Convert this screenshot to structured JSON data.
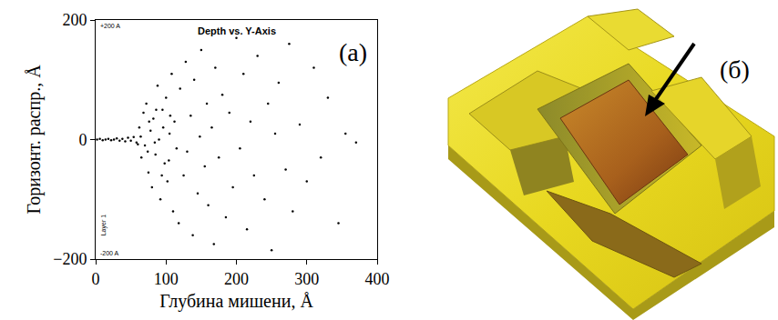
{
  "chart_data": {
    "type": "scatter",
    "title": "Depth vs. Y-Axis",
    "x_label": "Глубина мишени, Å",
    "y_label": "Горизонт. распр., Å",
    "annotations": {
      "panel": "(a)",
      "top": "+200 A",
      "bottom": "-200 A",
      "layer": "Layer 1"
    },
    "x": [
      2,
      6,
      10,
      14,
      18,
      22,
      26,
      30,
      34,
      38,
      42,
      46,
      50,
      54,
      58,
      62,
      65,
      68,
      70,
      72,
      75,
      78,
      80,
      82,
      85,
      88,
      90,
      92,
      95,
      98,
      100,
      102,
      105,
      108,
      110,
      112,
      115,
      118,
      120,
      125,
      128,
      130,
      135,
      138,
      140,
      145,
      148,
      150,
      155,
      158,
      160,
      165,
      168,
      170,
      175,
      180,
      185,
      190,
      195,
      200,
      205,
      210,
      215,
      220,
      225,
      230,
      240,
      245,
      250,
      255,
      260,
      270,
      275,
      280,
      290,
      300,
      310,
      320,
      330,
      345,
      355,
      370,
      60,
      64,
      74,
      76,
      84,
      86,
      94,
      96,
      104,
      106
    ],
    "values": [
      0,
      1,
      -1,
      0,
      1,
      -1,
      0,
      2,
      -2,
      1,
      -3,
      3,
      -2,
      4,
      -5,
      20,
      -30,
      45,
      -10,
      60,
      -55,
      15,
      -80,
      35,
      -25,
      90,
      0,
      -100,
      50,
      -40,
      70,
      -70,
      10,
      110,
      -120,
      30,
      -15,
      -140,
      85,
      -60,
      130,
      -20,
      40,
      -160,
      100,
      -90,
      5,
      150,
      -45,
      60,
      -110,
      20,
      -175,
      120,
      -30,
      75,
      -130,
      45,
      -80,
      170,
      -15,
      110,
      -150,
      30,
      -60,
      140,
      -100,
      60,
      -185,
      10,
      95,
      -50,
      160,
      -120,
      25,
      -70,
      120,
      -30,
      70,
      -140,
      10,
      -5,
      -8,
      5,
      -20,
      30,
      -5,
      50,
      -60,
      20,
      -35,
      40
    ],
    "color": "#000000",
    "marker": "dot",
    "xlim": [
      0,
      400
    ],
    "xticks": [
      0,
      100,
      200,
      300,
      400
    ],
    "ylim": [
      -200,
      200
    ],
    "yticks": [
      -200,
      0,
      200
    ],
    "grid": false
  },
  "panel_b": {
    "label": "(б)"
  }
}
